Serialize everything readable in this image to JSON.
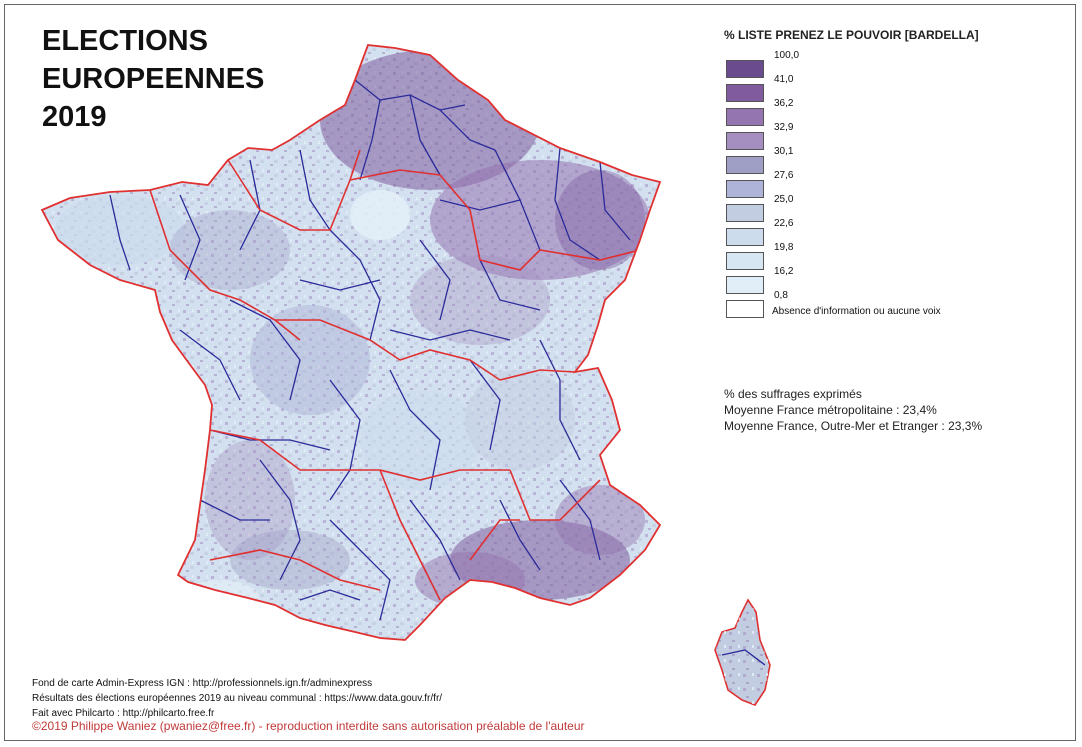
{
  "title_lines": [
    "ELECTIONS",
    "EUROPEENNES",
    "2019"
  ],
  "legend": {
    "title": "% LISTE PRENEZ LE POUVOIR [BARDELLA]",
    "top_value": "100,0",
    "classes": [
      {
        "upper": "100,0",
        "lower": "41,0",
        "color": "#6a4c8e"
      },
      {
        "upper": "41,0",
        "lower": "36,2",
        "color": "#805c9f"
      },
      {
        "upper": "36,2",
        "lower": "32,9",
        "color": "#9575b0"
      },
      {
        "upper": "32,9",
        "lower": "30,1",
        "color": "#a48fc0"
      },
      {
        "upper": "30,1",
        "lower": "27,6",
        "color": "#9f9fc6"
      },
      {
        "upper": "27,6",
        "lower": "25,0",
        "color": "#aeb3d8"
      },
      {
        "upper": "25,0",
        "lower": "22,6",
        "color": "#c3cde1"
      },
      {
        "upper": "22,6",
        "lower": "19,8",
        "color": "#ccdcec"
      },
      {
        "upper": "19,8",
        "lower": "16,2",
        "color": "#d6e6f2"
      },
      {
        "upper": "16,2",
        "lower": "0,8",
        "color": "#e2eef7"
      }
    ],
    "no_data_label": "Absence d'information ou aucune voix",
    "no_data_color": "#ffffff"
  },
  "stats": {
    "line1": "% des suffrages exprimés",
    "line2": "Moyenne France métropolitaine : 23,4%",
    "line3": "Moyenne France, Outre-Mer et Etranger : 23,3%"
  },
  "credits": {
    "line1": "Fond de carte Admin-Express IGN : http://professionnels.ign.fr/adminexpress",
    "line2": "Résultats des élections européennes 2019 au niveau communal : https://www.data.gouv.fr/fr/",
    "line3": "Fait avec Philcarto : http://philcarto.free.fr"
  },
  "copyright": "©2019 Philippe Waniez (pwaniez@free.fr) - reproduction interdite sans autorisation préalable de l'auteur",
  "map_colors": {
    "land": "#d3e0ef",
    "region_border": "#e03030",
    "department_border": "#2a2a9a"
  }
}
